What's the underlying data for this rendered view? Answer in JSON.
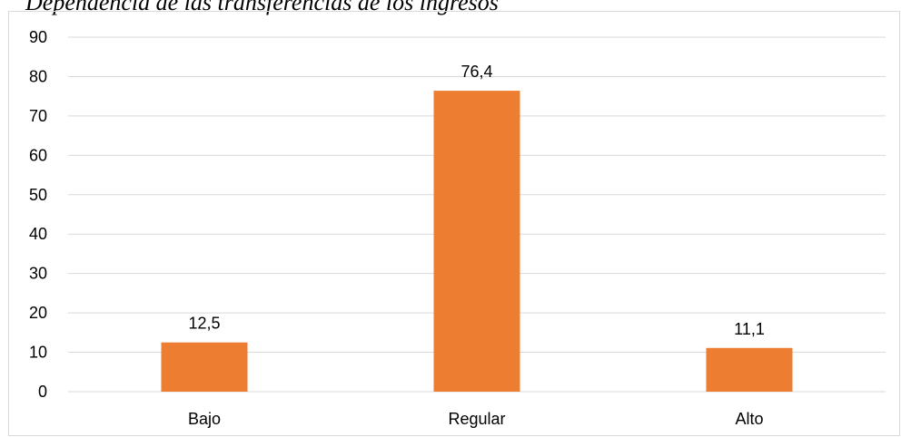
{
  "document": {
    "caption": "Dependencia de las transferencias de los ingresos"
  },
  "chart_data": {
    "type": "bar",
    "title": "",
    "xlabel": "",
    "ylabel": "",
    "categories": [
      "Bajo",
      "Regular",
      "Alto"
    ],
    "values": [
      12.5,
      76.4,
      11.1
    ],
    "data_labels": [
      "12,5",
      "76,4",
      "11,1"
    ],
    "yticks": [
      0,
      10,
      20,
      30,
      40,
      50,
      60,
      70,
      80,
      90
    ],
    "ylim": [
      0,
      90
    ],
    "grid": true,
    "legend": "none",
    "colors": {
      "bar": "#ED7D31",
      "grid": "#d9d9d9",
      "axis": "#d9d9d9"
    }
  }
}
